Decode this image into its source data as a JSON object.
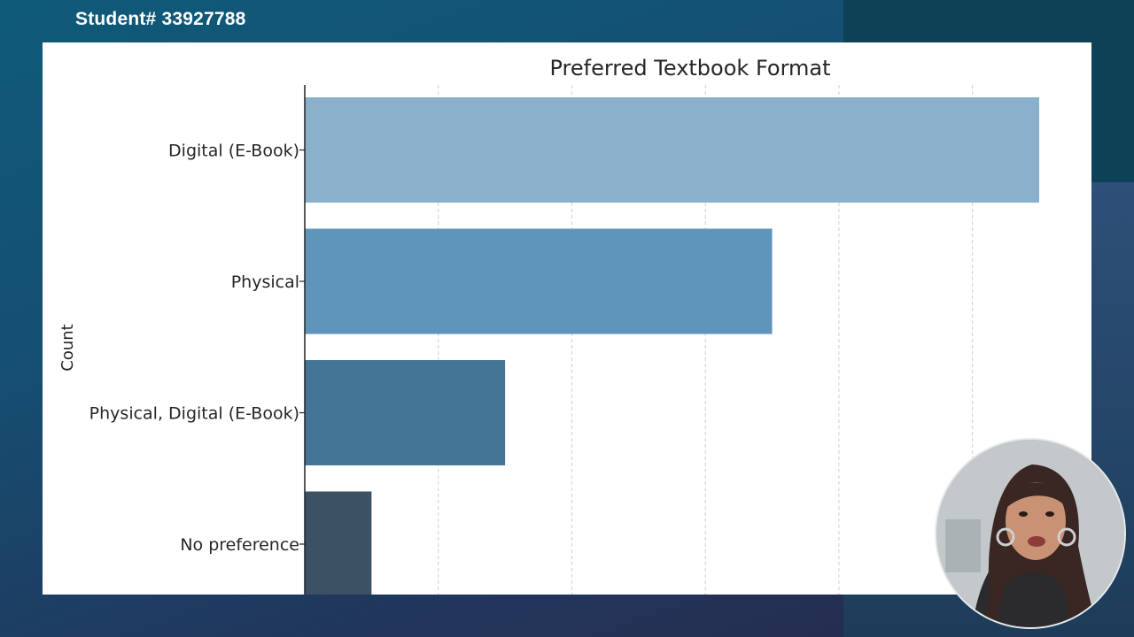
{
  "header": {
    "student_label": "Student# 33927788"
  },
  "chart_data": {
    "type": "bar",
    "orientation": "horizontal",
    "title": "Preferred Textbook Format",
    "xlabel": "",
    "ylabel": "Count",
    "categories": [
      "Digital (E-Book)",
      "Physical",
      "Physical, Digital (E-Book)",
      "No preference"
    ],
    "values": [
      55,
      35,
      15,
      5
    ],
    "colors": [
      "#8ab0cc",
      "#5f94bb",
      "#457596",
      "#3c5164"
    ],
    "xlim": [
      0,
      55
    ],
    "grid": "x-dashed",
    "legend": "none"
  },
  "webcam": {
    "icon": "presenter-video"
  }
}
